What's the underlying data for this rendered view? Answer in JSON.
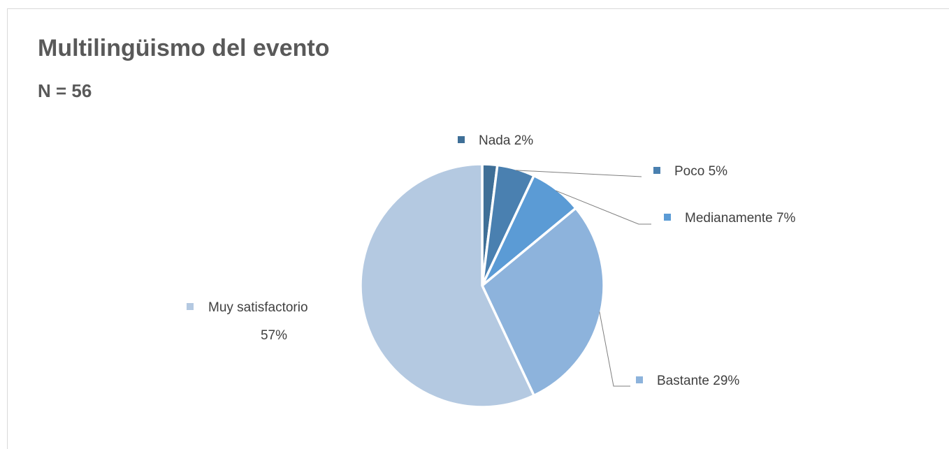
{
  "chart_data": {
    "type": "pie",
    "title": "Multilingüismo del evento",
    "subtitle": "N = 56",
    "slices": [
      {
        "name": "Nada",
        "percent": 2,
        "label": "2%",
        "color": "#3f6f97"
      },
      {
        "name": "Poco",
        "percent": 5,
        "label": "5%",
        "color": "#4a80b0"
      },
      {
        "name": "Medianamente",
        "percent": 7,
        "label": "7%",
        "color": "#5b9bd5"
      },
      {
        "name": "Bastante",
        "percent": 29,
        "label": "29%",
        "color": "#8db3dc"
      },
      {
        "name": "Muy satisfactorio",
        "percent": 57,
        "label": "57%",
        "color": "#b4c9e1"
      }
    ],
    "legend": "none (category labels beside slices)",
    "leader_line_color": "#7f7f7f",
    "slice_border_color": "#ffffff"
  }
}
